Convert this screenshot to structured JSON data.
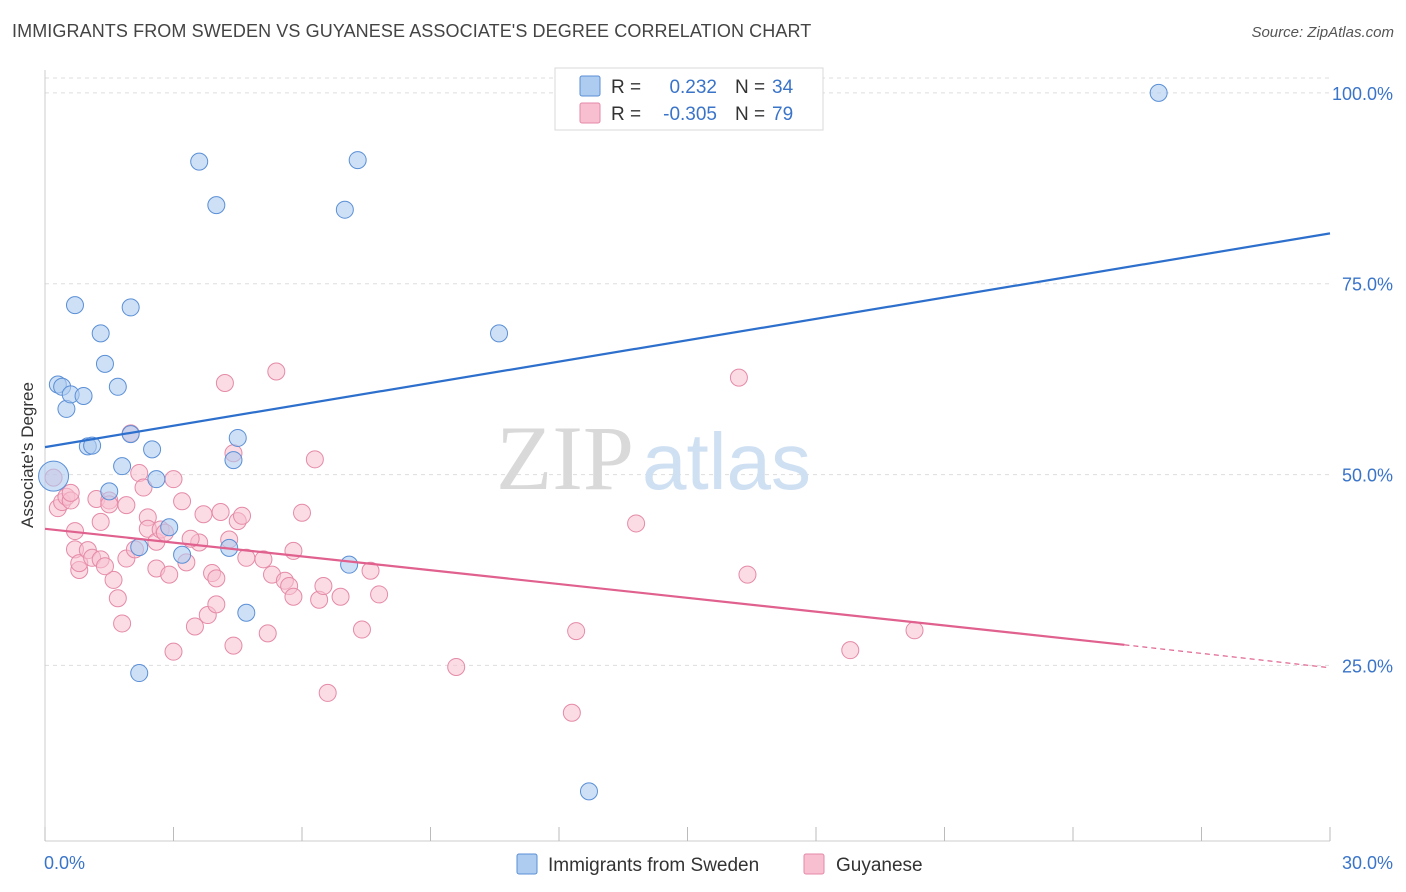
{
  "title": "IMMIGRANTS FROM SWEDEN VS GUYANESE ASSOCIATE'S DEGREE CORRELATION CHART",
  "source": "Source: ZipAtlas.com",
  "watermark": {
    "zip": "ZIP",
    "atlas": "atlas"
  },
  "colors": {
    "blue_fill": "#aecbf0",
    "blue_stroke": "#5a8fd6",
    "blue_line": "#2d6fcc",
    "pink_fill": "#f7bfd0",
    "pink_stroke": "#e58aa7",
    "pink_line": "#e0608e",
    "accent_text": "#3a74c9",
    "grid": "#dddddd"
  },
  "legend_box": {
    "rows": [
      {
        "r_label": "R =",
        "r_value": "0.232",
        "n_label": "N =",
        "n_value": "34"
      },
      {
        "r_label": "R =",
        "r_value": "-0.305",
        "n_label": "N =",
        "n_value": "79"
      }
    ]
  },
  "bottom_legend": [
    "Immigrants from Sweden",
    "Guyanese"
  ],
  "chart_data": {
    "type": "scatter",
    "title": "IMMIGRANTS FROM SWEDEN VS GUYANESE ASSOCIATE'S DEGREE CORRELATION CHART",
    "xlabel": "",
    "ylabel": "Associate's Degree",
    "xlim": [
      0,
      30
    ],
    "ylim": [
      2,
      103
    ],
    "x_ticks_labeled": [
      "0.0%",
      "30.0%"
    ],
    "y_ticks": [
      25,
      50,
      75,
      100
    ],
    "y_tick_labels": [
      "25.0%",
      "50.0%",
      "75.0%",
      "100.0%"
    ],
    "grid": true,
    "series": [
      {
        "name": "Immigrants from Sweden",
        "r": 0.232,
        "n": 34,
        "trend": {
          "x": [
            0,
            30
          ],
          "y": [
            53.6,
            81.6
          ]
        },
        "points": [
          [
            0.2,
            49.8
          ],
          [
            0.3,
            61.8
          ],
          [
            0.4,
            61.5
          ],
          [
            0.5,
            58.6
          ],
          [
            0.6,
            60.5
          ],
          [
            0.9,
            60.3
          ],
          [
            0.7,
            72.2
          ],
          [
            1.0,
            53.7
          ],
          [
            1.1,
            53.8
          ],
          [
            1.3,
            68.5
          ],
          [
            1.4,
            64.5
          ],
          [
            1.5,
            47.8
          ],
          [
            1.7,
            61.5
          ],
          [
            1.8,
            51.1
          ],
          [
            2.0,
            55.3
          ],
          [
            2.0,
            71.9
          ],
          [
            2.5,
            53.3
          ],
          [
            2.6,
            49.4
          ],
          [
            2.2,
            24.0
          ],
          [
            2.2,
            40.5
          ],
          [
            2.9,
            43.1
          ],
          [
            3.2,
            39.5
          ],
          [
            3.6,
            91.0
          ],
          [
            4.0,
            85.3
          ],
          [
            4.3,
            40.4
          ],
          [
            4.4,
            51.9
          ],
          [
            4.5,
            54.8
          ],
          [
            4.7,
            31.9
          ],
          [
            7.0,
            84.7
          ],
          [
            7.1,
            38.2
          ],
          [
            7.3,
            91.2
          ],
          [
            10.6,
            68.5
          ],
          [
            12.7,
            8.5
          ],
          [
            26.0,
            100.0
          ]
        ]
      },
      {
        "name": "Guyanese",
        "r": -0.305,
        "n": 79,
        "trend": {
          "x": [
            0,
            25.2
          ],
          "y": [
            42.9,
            27.7
          ]
        },
        "trend_dashed": {
          "x": [
            25.2,
            30
          ],
          "y": [
            27.7,
            24.7
          ]
        },
        "points": [
          [
            0.2,
            49.6
          ],
          [
            0.3,
            45.6
          ],
          [
            0.4,
            46.4
          ],
          [
            0.5,
            47.1
          ],
          [
            0.6,
            46.6
          ],
          [
            0.7,
            40.2
          ],
          [
            0.7,
            42.6
          ],
          [
            0.8,
            37.5
          ],
          [
            0.8,
            38.4
          ],
          [
            1.0,
            40.1
          ],
          [
            1.1,
            39.1
          ],
          [
            1.2,
            46.8
          ],
          [
            1.3,
            43.8
          ],
          [
            1.3,
            38.9
          ],
          [
            1.5,
            46.6
          ],
          [
            1.5,
            46.1
          ],
          [
            1.6,
            36.2
          ],
          [
            1.7,
            33.8
          ],
          [
            1.8,
            30.5
          ],
          [
            1.9,
            46.0
          ],
          [
            1.9,
            39.0
          ],
          [
            2.0,
            55.4
          ],
          [
            2.1,
            40.2
          ],
          [
            2.2,
            50.2
          ],
          [
            2.3,
            48.3
          ],
          [
            2.4,
            44.4
          ],
          [
            2.4,
            42.9
          ],
          [
            2.6,
            37.7
          ],
          [
            2.6,
            41.2
          ],
          [
            2.7,
            42.8
          ],
          [
            2.9,
            36.9
          ],
          [
            3.0,
            26.8
          ],
          [
            3.0,
            49.4
          ],
          [
            3.2,
            46.5
          ],
          [
            3.3,
            38.5
          ],
          [
            3.5,
            30.1
          ],
          [
            3.6,
            41.1
          ],
          [
            3.7,
            44.8
          ],
          [
            3.8,
            31.6
          ],
          [
            3.9,
            37.1
          ],
          [
            4.0,
            33.0
          ],
          [
            4.0,
            36.4
          ],
          [
            4.2,
            62.0
          ],
          [
            4.3,
            41.5
          ],
          [
            4.4,
            52.8
          ],
          [
            4.4,
            27.6
          ],
          [
            4.5,
            43.9
          ],
          [
            4.6,
            44.6
          ],
          [
            4.7,
            39.1
          ],
          [
            5.1,
            38.9
          ],
          [
            5.2,
            29.2
          ],
          [
            5.3,
            36.9
          ],
          [
            5.4,
            63.5
          ],
          [
            5.6,
            36.1
          ],
          [
            5.7,
            35.4
          ],
          [
            5.8,
            40.0
          ],
          [
            5.8,
            34.0
          ],
          [
            6.0,
            45.0
          ],
          [
            6.3,
            52.0
          ],
          [
            6.4,
            33.6
          ],
          [
            6.5,
            35.4
          ],
          [
            6.6,
            21.4
          ],
          [
            6.9,
            34.0
          ],
          [
            7.4,
            29.7
          ],
          [
            7.6,
            37.4
          ],
          [
            7.8,
            34.3
          ],
          [
            9.6,
            24.8
          ],
          [
            12.3,
            18.8
          ],
          [
            12.4,
            29.5
          ],
          [
            13.8,
            43.6
          ],
          [
            16.2,
            62.7
          ],
          [
            16.4,
            36.9
          ],
          [
            18.8,
            27.0
          ],
          [
            20.3,
            29.6
          ],
          [
            0.6,
            47.6
          ],
          [
            1.4,
            38.0
          ],
          [
            2.8,
            42.4
          ],
          [
            3.4,
            41.6
          ],
          [
            4.1,
            45.1
          ]
        ]
      }
    ]
  }
}
